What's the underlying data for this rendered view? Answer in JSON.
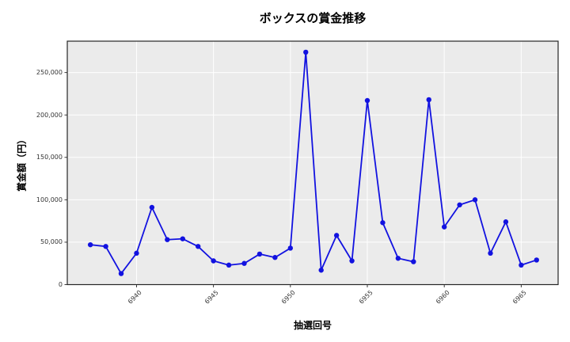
{
  "chart_data": {
    "type": "line",
    "title": "ボックスの賞金推移",
    "xlabel": "抽選回号",
    "ylabel": "賞金額（円）",
    "x": [
      6937,
      6938,
      6939,
      6940,
      6941,
      6942,
      6943,
      6944,
      6945,
      6946,
      6947,
      6948,
      6949,
      6950,
      6951,
      6952,
      6953,
      6954,
      6955,
      6956,
      6957,
      6958,
      6959,
      6960,
      6961,
      6962,
      6963,
      6964,
      6965,
      6966
    ],
    "values": [
      47000,
      45000,
      13000,
      37000,
      91000,
      53000,
      54000,
      45000,
      28000,
      23000,
      25000,
      36000,
      32000,
      43000,
      274000,
      17000,
      58000,
      28000,
      217000,
      73000,
      31000,
      27000,
      218000,
      68000,
      94000,
      100000,
      37000,
      74000,
      23000,
      29000
    ],
    "x_ticks": [
      6940,
      6945,
      6950,
      6955,
      6960,
      6965
    ],
    "x_tick_labels": [
      "6940",
      "6945",
      "6950",
      "6955",
      "6960",
      "6965"
    ],
    "y_ticks": [
      0,
      50000,
      100000,
      150000,
      200000,
      250000
    ],
    "y_tick_labels": [
      "0",
      "50,000",
      "100,000",
      "150,000",
      "200,000",
      "250,000"
    ],
    "xlim": [
      6935.5,
      6967.4
    ],
    "ylim": [
      0,
      287000
    ],
    "grid": true,
    "legend_position": "none",
    "marker": "circle",
    "colors": {
      "line": "#1212e0",
      "marker": "#1212e0",
      "plot_background": "#ebebeb",
      "grid": "#ffffff",
      "spine": "#262626",
      "tick_label": "#333333",
      "title": "#000000"
    }
  }
}
